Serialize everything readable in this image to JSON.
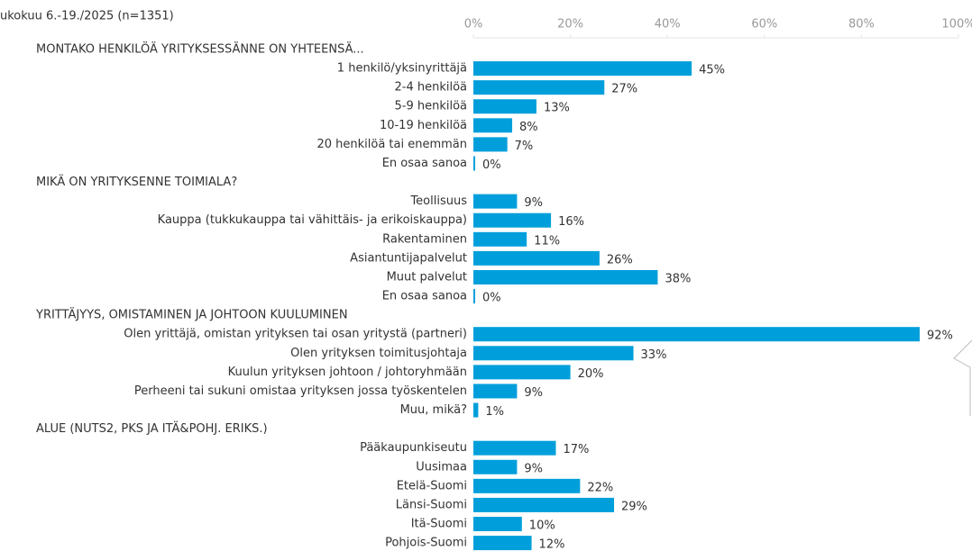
{
  "chart_data": {
    "type": "bar",
    "orientation": "horizontal",
    "subtitle": "ukokuu 6.-19./2025 (n=1351)",
    "color": "#009fdb",
    "categories": [
      "MONTAKO HENKILÖÄ YRITYKSESSÄNNE ON YHTEENSÄ...",
      "1 henkilö/yksinyrittäjä",
      "2-4 henkilöä",
      "5-9 henkilöä",
      "10-19 henkilöä",
      "20 henkilöä tai enemmän",
      "En osaa sanoa",
      "MIKÄ ON YRITYKSENNE TOIMIALA?",
      "Teollisuus",
      "Kauppa (tukkukauppa tai vähittäis- ja erikoiskauppa)",
      "Rakentaminen",
      "Asiantuntijapalvelut",
      "Muut palvelut",
      "En osaa sanoa",
      "YRITTÄJYYS, OMISTAMINEN JA JOHTOON KUULUMINEN",
      "Olen yrittäjä, omistan yrityksen tai osan yritystä (partneri)",
      "Olen yrityksen toimitusjohtaja",
      "Kuulun yrityksen johtoon / johtoryhmään",
      "Perheeni tai sukuni omistaa yrityksen jossa työskentelen",
      "Muu, mikä?",
      "ALUE (NUTS2, PKS JA ITÄ&POHJ. ERIKS.)",
      "Pääkaupunkiseutu",
      "Uusimaa",
      "Etelä-Suomi",
      "Länsi-Suomi",
      "Itä-Suomi",
      "Pohjois-Suomi"
    ],
    "values": [
      null,
      45,
      27,
      13,
      8,
      7,
      0,
      null,
      9,
      16,
      11,
      26,
      38,
      0,
      null,
      92,
      33,
      20,
      9,
      1,
      null,
      17,
      9,
      22,
      29,
      10,
      12
    ],
    "value_labels": [
      null,
      "45%",
      "27%",
      "13%",
      "8%",
      "7%",
      "0%",
      null,
      "9%",
      "16%",
      "11%",
      "26%",
      "38%",
      "0%",
      null,
      "92%",
      "33%",
      "20%",
      "9%",
      "1%",
      null,
      "17%",
      "9%",
      "22%",
      "29%",
      "10%",
      "12%"
    ],
    "xlim": [
      0,
      100
    ],
    "xticks": [
      {
        "value": 0,
        "label": "0%"
      },
      {
        "value": 20,
        "label": "20%"
      },
      {
        "value": 40,
        "label": "40%"
      },
      {
        "value": 60,
        "label": "60%"
      },
      {
        "value": 80,
        "label": "80%"
      },
      {
        "value": 100,
        "label": "100%"
      }
    ]
  }
}
